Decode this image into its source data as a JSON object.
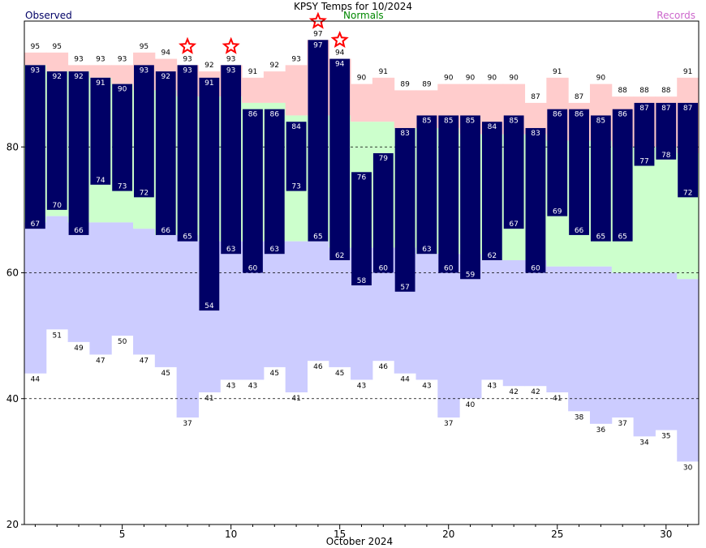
{
  "chart_data": {
    "type": "bar",
    "title": "KPSY Temps for 10/2024",
    "legend": {
      "observed": "Observed",
      "normals": "Normals",
      "records": "Records"
    },
    "xlabel": "October 2024",
    "ylim": [
      20,
      100
    ],
    "yticks": [
      20,
      40,
      60,
      80
    ],
    "xticks": [
      5,
      10,
      15,
      20,
      25,
      30
    ],
    "grid": "horizontal-dashed-at-y-ticks",
    "days": [
      1,
      2,
      3,
      4,
      5,
      6,
      7,
      8,
      9,
      10,
      11,
      12,
      13,
      14,
      15,
      16,
      17,
      18,
      19,
      20,
      21,
      22,
      23,
      24,
      25,
      26,
      27,
      28,
      29,
      30,
      31
    ],
    "observed_high": [
      93,
      92,
      92,
      91,
      90,
      93,
      92,
      93,
      91,
      93,
      86,
      86,
      84,
      97,
      94,
      76,
      79,
      83,
      85,
      85,
      85,
      84,
      85,
      83,
      86,
      86,
      85,
      86,
      87,
      87,
      87
    ],
    "observed_low": [
      67,
      70,
      66,
      74,
      73,
      72,
      66,
      65,
      54,
      63,
      60,
      63,
      73,
      65,
      62,
      58,
      60,
      57,
      63,
      60,
      59,
      62,
      67,
      60,
      69,
      66,
      65,
      65,
      77,
      78,
      72
    ],
    "record_high": [
      95,
      95,
      93,
      93,
      93,
      95,
      94,
      93,
      92,
      93,
      91,
      92,
      93,
      97,
      94,
      90,
      91,
      89,
      89,
      90,
      90,
      90,
      90,
      87,
      91,
      87,
      90,
      88,
      88,
      88,
      91
    ],
    "record_low": [
      44,
      51,
      49,
      47,
      50,
      47,
      45,
      37,
      41,
      43,
      43,
      45,
      41,
      46,
      45,
      43,
      46,
      44,
      43,
      37,
      40,
      43,
      42,
      42,
      41,
      38,
      36,
      37,
      34,
      35,
      30
    ],
    "normal_high": [
      93,
      92,
      92,
      91,
      90,
      89,
      89,
      88,
      88,
      88,
      87,
      87,
      85,
      85,
      85,
      84,
      84,
      83,
      83,
      83,
      82,
      82,
      82,
      82,
      81,
      81,
      81,
      80,
      80,
      80,
      79
    ],
    "normal_low": [
      68,
      69,
      68,
      68,
      68,
      67,
      66,
      66,
      65,
      65,
      65,
      65,
      65,
      65,
      64,
      64,
      64,
      64,
      63,
      63,
      63,
      62,
      62,
      62,
      61,
      61,
      61,
      60,
      60,
      60,
      59
    ],
    "record_set_days": [
      8,
      10,
      14,
      15
    ]
  },
  "colors": {
    "observed": "#000066",
    "normal_fill": "#ccffcc",
    "normals_text": "#008800",
    "record_high_fill": "#ffcccc",
    "record_low_fill": "#ccccff",
    "records_text": "#cc66cc",
    "record_star": "#ff0000",
    "bar_label": "#ffffff"
  }
}
